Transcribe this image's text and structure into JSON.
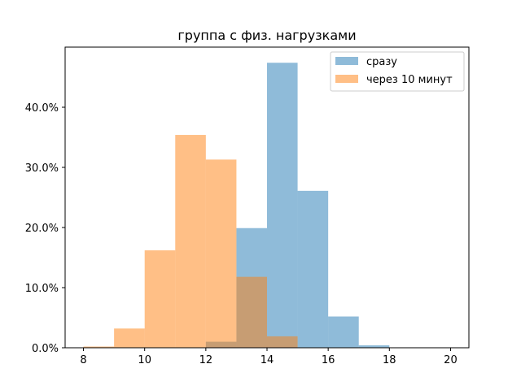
{
  "chart_data": {
    "type": "bar",
    "title": "группа с физ. нагрузками",
    "xlabel": "",
    "ylabel": "",
    "xlim": [
      7.4,
      20.6
    ],
    "ylim": [
      0,
      0.5
    ],
    "bin_width": 1,
    "x_ticks": [
      8,
      10,
      12,
      14,
      16,
      18,
      20
    ],
    "y_ticks": [
      0,
      0.1,
      0.2,
      0.3,
      0.4
    ],
    "y_tick_labels": [
      "0.0%",
      "10.0%",
      "20.0%",
      "30.0%",
      "40.0%"
    ],
    "grid": false,
    "legend": "top-right",
    "series": [
      {
        "name": "сразу",
        "color": "#1f77b4",
        "alpha": 0.5,
        "bins": [
          {
            "x0": 12,
            "x1": 13,
            "value": 0.01
          },
          {
            "x0": 13,
            "x1": 14,
            "value": 0.199
          },
          {
            "x0": 14,
            "x1": 15,
            "value": 0.474
          },
          {
            "x0": 15,
            "x1": 16,
            "value": 0.261
          },
          {
            "x0": 16,
            "x1": 17,
            "value": 0.052
          },
          {
            "x0": 17,
            "x1": 18,
            "value": 0.004
          }
        ]
      },
      {
        "name": "через 10 минут",
        "color": "#ff7f0e",
        "alpha": 0.5,
        "bins": [
          {
            "x0": 8,
            "x1": 9,
            "value": 0.002
          },
          {
            "x0": 9,
            "x1": 10,
            "value": 0.032
          },
          {
            "x0": 10,
            "x1": 11,
            "value": 0.162
          },
          {
            "x0": 11,
            "x1": 12,
            "value": 0.354
          },
          {
            "x0": 12,
            "x1": 13,
            "value": 0.313
          },
          {
            "x0": 13,
            "x1": 14,
            "value": 0.118
          },
          {
            "x0": 14,
            "x1": 15,
            "value": 0.019
          }
        ]
      }
    ]
  }
}
